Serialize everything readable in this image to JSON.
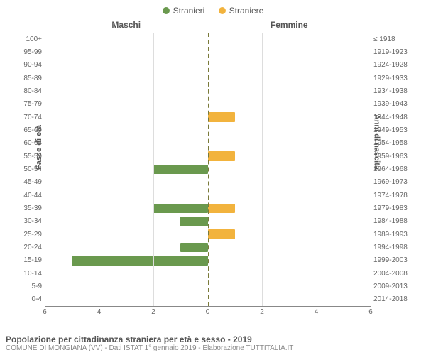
{
  "legend": {
    "male": {
      "label": "Stranieri",
      "color": "#6a994e"
    },
    "female": {
      "label": "Straniere",
      "color": "#f2b33d"
    }
  },
  "column_headers": {
    "left": "Maschi",
    "right": "Femmine"
  },
  "axis_labels": {
    "left": "Fasce di età",
    "right": "Anni di nascita"
  },
  "chart": {
    "type": "population-pyramid",
    "x_max": 6,
    "x_ticks": [
      6,
      4,
      2,
      0,
      2,
      4,
      6
    ],
    "background_color": "#ffffff",
    "grid_color": "#dddddd",
    "center_line_color": "#7a7a3a",
    "bar_color_male": "#6a994e",
    "bar_color_female": "#f2b33d",
    "rows": [
      {
        "age": "100+",
        "birth": "≤ 1918",
        "m": 0,
        "f": 0
      },
      {
        "age": "95-99",
        "birth": "1919-1923",
        "m": 0,
        "f": 0
      },
      {
        "age": "90-94",
        "birth": "1924-1928",
        "m": 0,
        "f": 0
      },
      {
        "age": "85-89",
        "birth": "1929-1933",
        "m": 0,
        "f": 0
      },
      {
        "age": "80-84",
        "birth": "1934-1938",
        "m": 0,
        "f": 0
      },
      {
        "age": "75-79",
        "birth": "1939-1943",
        "m": 0,
        "f": 0
      },
      {
        "age": "70-74",
        "birth": "1944-1948",
        "m": 0,
        "f": 1
      },
      {
        "age": "65-69",
        "birth": "1949-1953",
        "m": 0,
        "f": 0
      },
      {
        "age": "60-64",
        "birth": "1954-1958",
        "m": 0,
        "f": 0
      },
      {
        "age": "55-59",
        "birth": "1959-1963",
        "m": 0,
        "f": 1
      },
      {
        "age": "50-54",
        "birth": "1964-1968",
        "m": 2,
        "f": 0
      },
      {
        "age": "45-49",
        "birth": "1969-1973",
        "m": 0,
        "f": 0
      },
      {
        "age": "40-44",
        "birth": "1974-1978",
        "m": 0,
        "f": 0
      },
      {
        "age": "35-39",
        "birth": "1979-1983",
        "m": 2,
        "f": 1
      },
      {
        "age": "30-34",
        "birth": "1984-1988",
        "m": 1,
        "f": 0
      },
      {
        "age": "25-29",
        "birth": "1989-1993",
        "m": 0,
        "f": 1
      },
      {
        "age": "20-24",
        "birth": "1994-1998",
        "m": 1,
        "f": 0
      },
      {
        "age": "15-19",
        "birth": "1999-2003",
        "m": 5,
        "f": 0
      },
      {
        "age": "10-14",
        "birth": "2004-2008",
        "m": 0,
        "f": 0
      },
      {
        "age": "5-9",
        "birth": "2009-2013",
        "m": 0,
        "f": 0
      },
      {
        "age": "0-4",
        "birth": "2014-2018",
        "m": 0,
        "f": 0
      }
    ]
  },
  "caption": {
    "title": "Popolazione per cittadinanza straniera per età e sesso - 2019",
    "sub": "COMUNE DI MONGIANA (VV) - Dati ISTAT 1° gennaio 2019 - Elaborazione TUTTITALIA.IT"
  }
}
